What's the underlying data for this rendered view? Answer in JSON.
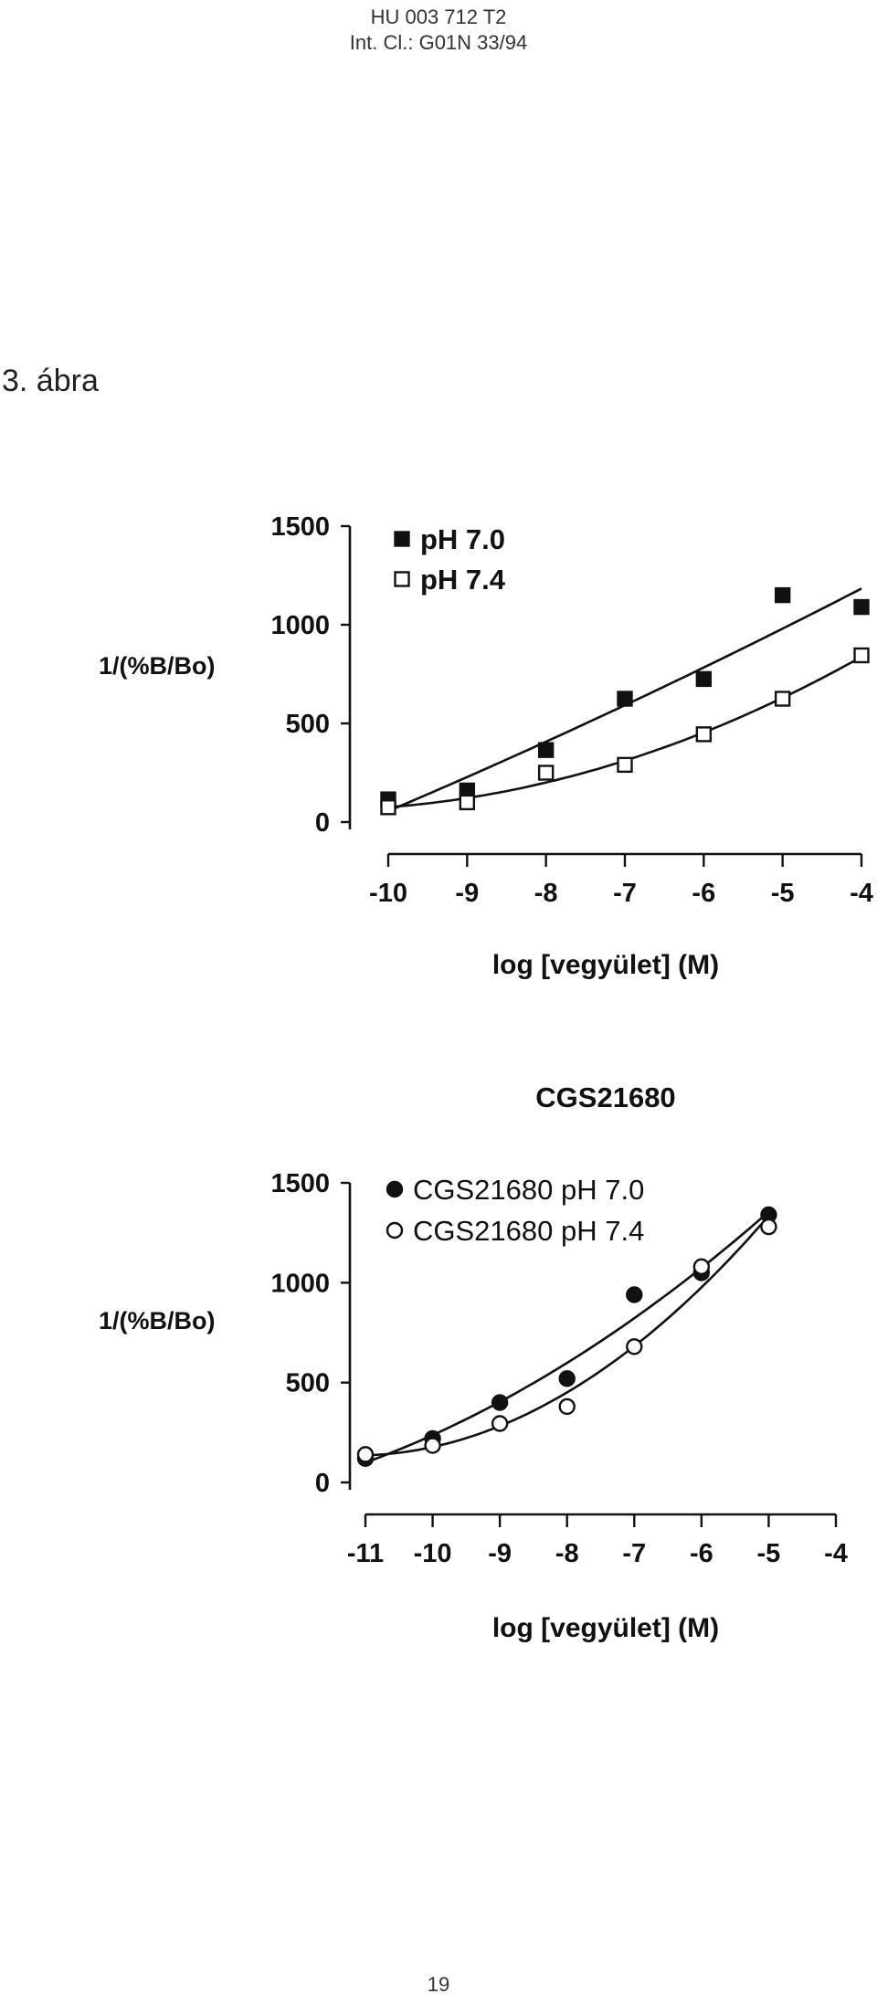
{
  "header": {
    "line1": "HU 003 712 T2",
    "line2": "Int. Cl.: G01N 33/94"
  },
  "figure_label": "3. ábra",
  "page_number": "19",
  "chart_data": [
    {
      "type": "scatter",
      "title": "",
      "ylabel": "1/(%B/Bo)",
      "xlabel": "log [vegyület] (M)",
      "xlim": [
        -10,
        -4
      ],
      "ylim": [
        0,
        1500
      ],
      "x_ticks": [
        -10,
        -9,
        -8,
        -7,
        -6,
        -5,
        -4
      ],
      "y_ticks": [
        0,
        500,
        1000,
        1500
      ],
      "grid": false,
      "legend_position": "top-left",
      "series": [
        {
          "name": "pH 7.0",
          "marker": "filled-square",
          "x": [
            -10,
            -9,
            -8,
            -7,
            -6,
            -5,
            -4
          ],
          "y": [
            115,
            160,
            365,
            625,
            725,
            1150,
            1090
          ],
          "fit_curve": true
        },
        {
          "name": "pH 7.4",
          "marker": "open-square",
          "x": [
            -10,
            -9,
            -8,
            -7,
            -6,
            -5,
            -4
          ],
          "y": [
            75,
            100,
            250,
            290,
            445,
            625,
            845
          ],
          "fit_curve": true
        }
      ]
    },
    {
      "type": "scatter",
      "title": "CGS21680",
      "ylabel": "1/(%B/Bo)",
      "xlabel": "log [vegyület] (M)",
      "xlim": [
        -11,
        -4
      ],
      "ylim": [
        0,
        1500
      ],
      "x_ticks": [
        -11,
        -10,
        -9,
        -8,
        -7,
        -6,
        -5,
        -4
      ],
      "y_ticks": [
        0,
        500,
        1000,
        1500
      ],
      "grid": false,
      "legend_position": "top-left",
      "series": [
        {
          "name": "CGS21680 pH 7.0",
          "marker": "filled-circle",
          "x": [
            -11,
            -10,
            -9,
            -8,
            -7,
            -6,
            -5
          ],
          "y": [
            120,
            220,
            400,
            520,
            940,
            1050,
            1340
          ],
          "fit_curve": true
        },
        {
          "name": "CGS21680 pH 7.4",
          "marker": "open-circle",
          "x": [
            -11,
            -10,
            -9,
            -8,
            -7,
            -6,
            -5
          ],
          "y": [
            140,
            185,
            295,
            380,
            680,
            1080,
            1280
          ],
          "fit_curve": true
        }
      ]
    }
  ]
}
